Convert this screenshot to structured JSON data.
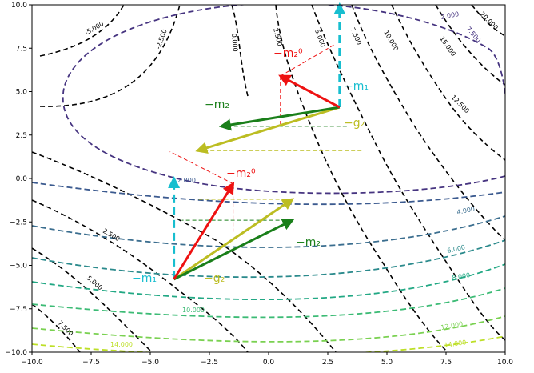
{
  "chart_data": {
    "type": "contour",
    "xlim": [
      -10,
      10
    ],
    "ylim": [
      -10,
      10
    ],
    "x_ticks": [
      "−10.0",
      "−7.5",
      "−5.0",
      "−2.5",
      "0.0",
      "2.5",
      "5.0",
      "7.5",
      "10.0"
    ],
    "y_ticks": [
      "−10.0",
      "−7.5",
      "−5.0",
      "−2.5",
      "0.0",
      "2.5",
      "5.0",
      "7.5",
      "10.0"
    ],
    "tick_values": [
      -10,
      -7.5,
      -5,
      -2.5,
      0,
      2.5,
      5,
      7.5,
      10
    ],
    "grid": false,
    "contour_labels_black": [
      "-5.000",
      "-2.500",
      "0.000",
      "2.500",
      "5.000",
      "7.500",
      "10.000",
      "15.000",
      "20.000",
      "12.500",
      "2.500",
      "5.000",
      "7.500"
    ],
    "contour_labels_colored": [
      {
        "text": "2.000",
        "color": "#463480"
      },
      {
        "text": "7.500",
        "color": "#463480"
      },
      {
        "text": "2.000",
        "color": "#3b5a8f"
      },
      {
        "text": "4.000",
        "color": "#3b6e8f"
      },
      {
        "text": "6.000",
        "color": "#2b8a8c"
      },
      {
        "text": "8.000",
        "color": "#22a884"
      },
      {
        "text": "10.000",
        "color": "#3cbb75"
      },
      {
        "text": "12.000",
        "color": "#7ad151"
      },
      {
        "text": "14.000",
        "color": "#bddf26"
      },
      {
        "text": "14.000",
        "color": "#bddf26"
      }
    ],
    "vector_labels": {
      "upper": {
        "m2_0": "−m₂⁰",
        "m1": "−m₁",
        "m2": "−m₂",
        "g2": "−g₂"
      },
      "lower": {
        "m2_0": "−m₂⁰",
        "m1": "−m₁",
        "m2": "−m₂",
        "g2": "−g₂"
      }
    },
    "colors": {
      "m1": "#17becf",
      "m2": "#1a7f1a",
      "m2_0": "#ee1111",
      "g2": "#bcbd22"
    },
    "vectors": {
      "upper": {
        "origin": [
          3.0,
          4.1
        ],
        "m1_tip": [
          3.0,
          10.0
        ],
        "m2_0_tip": [
          0.5,
          5.9
        ],
        "m2_tip": [
          -2.0,
          3.0
        ],
        "g2_tip": [
          -3.0,
          1.6
        ]
      },
      "lower": {
        "origin": [
          -4.0,
          -5.8
        ],
        "m1_tip": [
          -4.0,
          0.0
        ],
        "m2_0_tip": [
          -1.5,
          -0.3
        ],
        "m2_tip": [
          1.0,
          -2.4
        ],
        "g2_tip": [
          1.0,
          -1.2
        ]
      }
    }
  }
}
